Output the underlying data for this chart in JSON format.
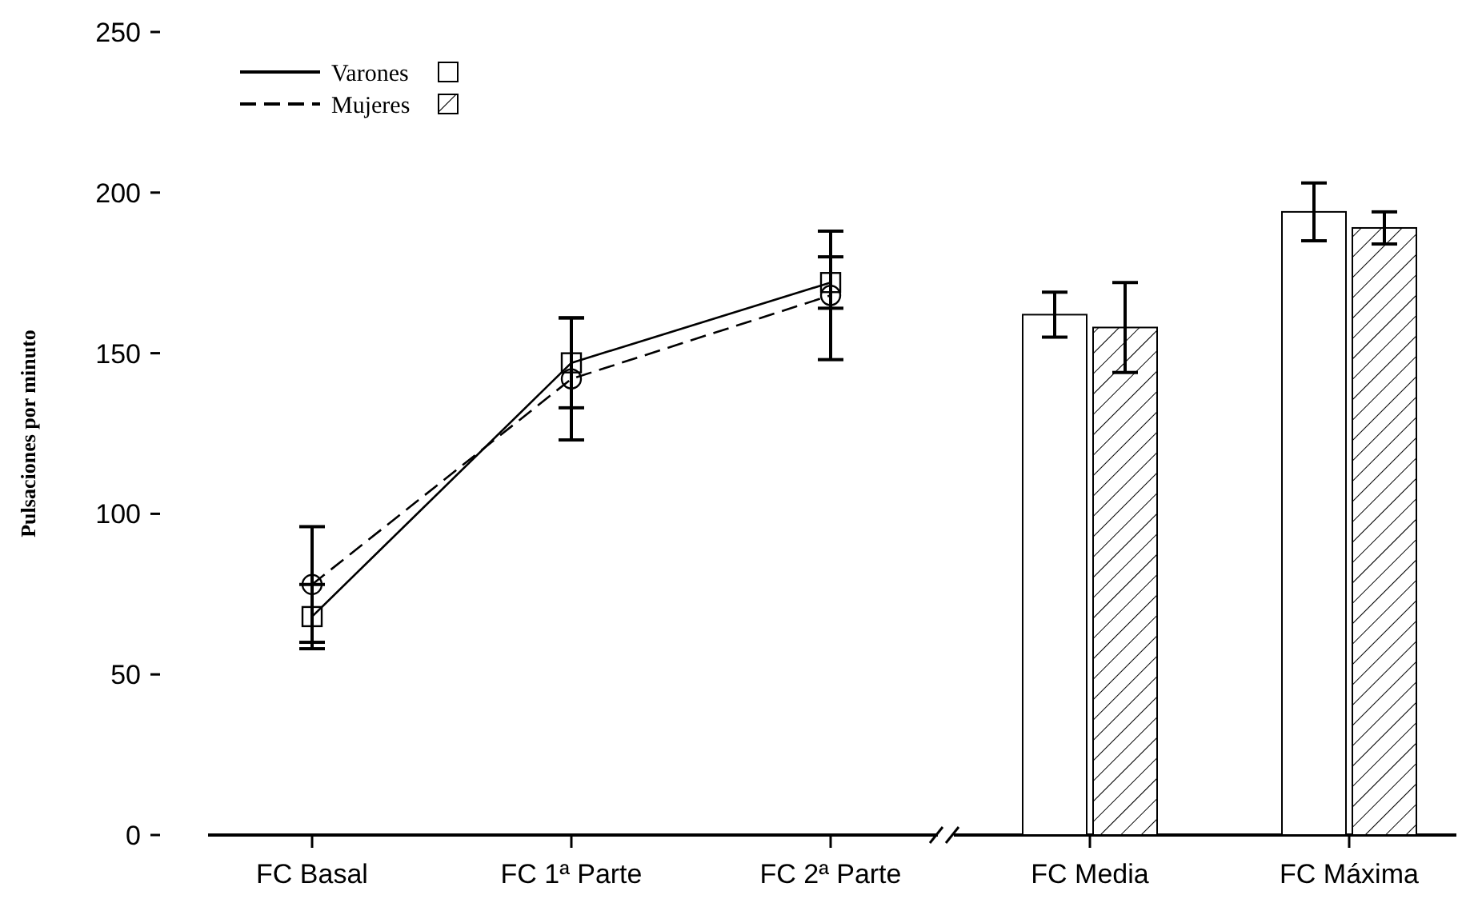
{
  "chart_data": {
    "type": "line",
    "ylabel": "Pulsaciones por minuto",
    "categories": [
      "FC Basal",
      "FC 1ª Parte",
      "FC 2ª Parte",
      "FC Media",
      "FC Máxima"
    ],
    "series": [
      {
        "name": "Varones",
        "color": "#000000",
        "marker": "square",
        "line_style": "solid",
        "values": [
          68,
          147,
          172,
          null,
          null
        ],
        "errors": [
          10,
          14,
          8,
          null,
          null
        ]
      },
      {
        "name": "Mujeres",
        "color": "#000000",
        "marker": "circle",
        "line_style": "dashed",
        "values": [
          78,
          142,
          168,
          null,
          null
        ],
        "errors": [
          18,
          19,
          20,
          null,
          null
        ]
      },
      {
        "type": "bar",
        "color": "#ffffff",
        "line_style": "solid",
        "values": [
          null,
          null,
          null,
          162,
          194
        ],
        "errors": [
          null,
          null,
          null,
          7,
          9
        ]
      },
      {
        "type": "bar",
        "color": "#000000",
        "line_style": "dashed",
        "values": [
          null,
          null,
          null,
          158,
          189
        ],
        "errors": [
          null,
          null,
          null,
          14,
          5
        ]
      }
    ],
    "ylim": [
      0,
      250
    ],
    "yticks": [
      0,
      50,
      100,
      150,
      200,
      250
    ],
    "grid": false,
    "legend": "top left"
  }
}
